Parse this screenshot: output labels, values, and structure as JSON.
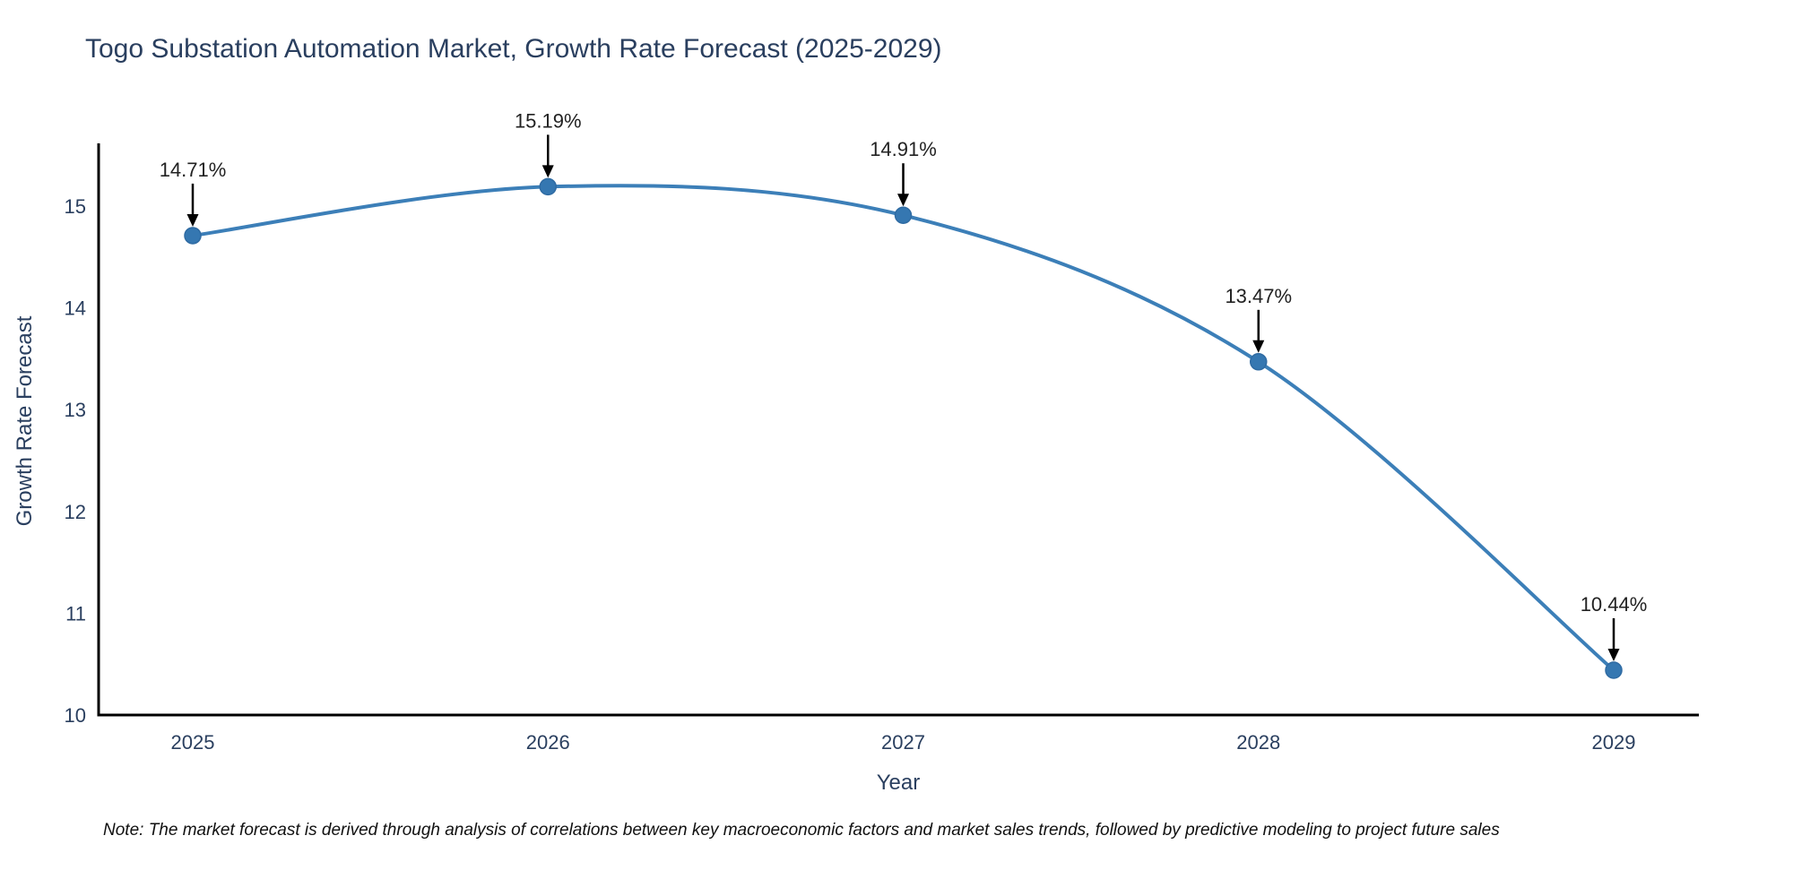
{
  "chart_data": {
    "type": "line",
    "title": "Togo Substation Automation Market, Growth Rate Forecast (2025-2029)",
    "xlabel": "Year",
    "ylabel": "Growth Rate Forecast",
    "categories": [
      "2025",
      "2026",
      "2027",
      "2028",
      "2029"
    ],
    "values": [
      14.71,
      15.19,
      14.91,
      13.47,
      10.44
    ],
    "point_labels": [
      "14.71%",
      "15.19%",
      "14.91%",
      "13.47%",
      "10.44%"
    ],
    "yticks": [
      10,
      11,
      12,
      13,
      14,
      15
    ],
    "ylim": [
      10,
      15.6
    ],
    "grid": false,
    "legend_position": "none",
    "line_shape": "spline",
    "colors": {
      "line": "#3c7fb8",
      "marker": "#3577b1",
      "axis": "#000000",
      "chart_text": "#2a3f5f",
      "annotation_text": "#222222",
      "arrow": "#000000"
    },
    "note": "Note: The market forecast is derived through analysis of correlations between key macroeconomic factors and market sales trends, followed by predictive modeling to project future sales"
  }
}
